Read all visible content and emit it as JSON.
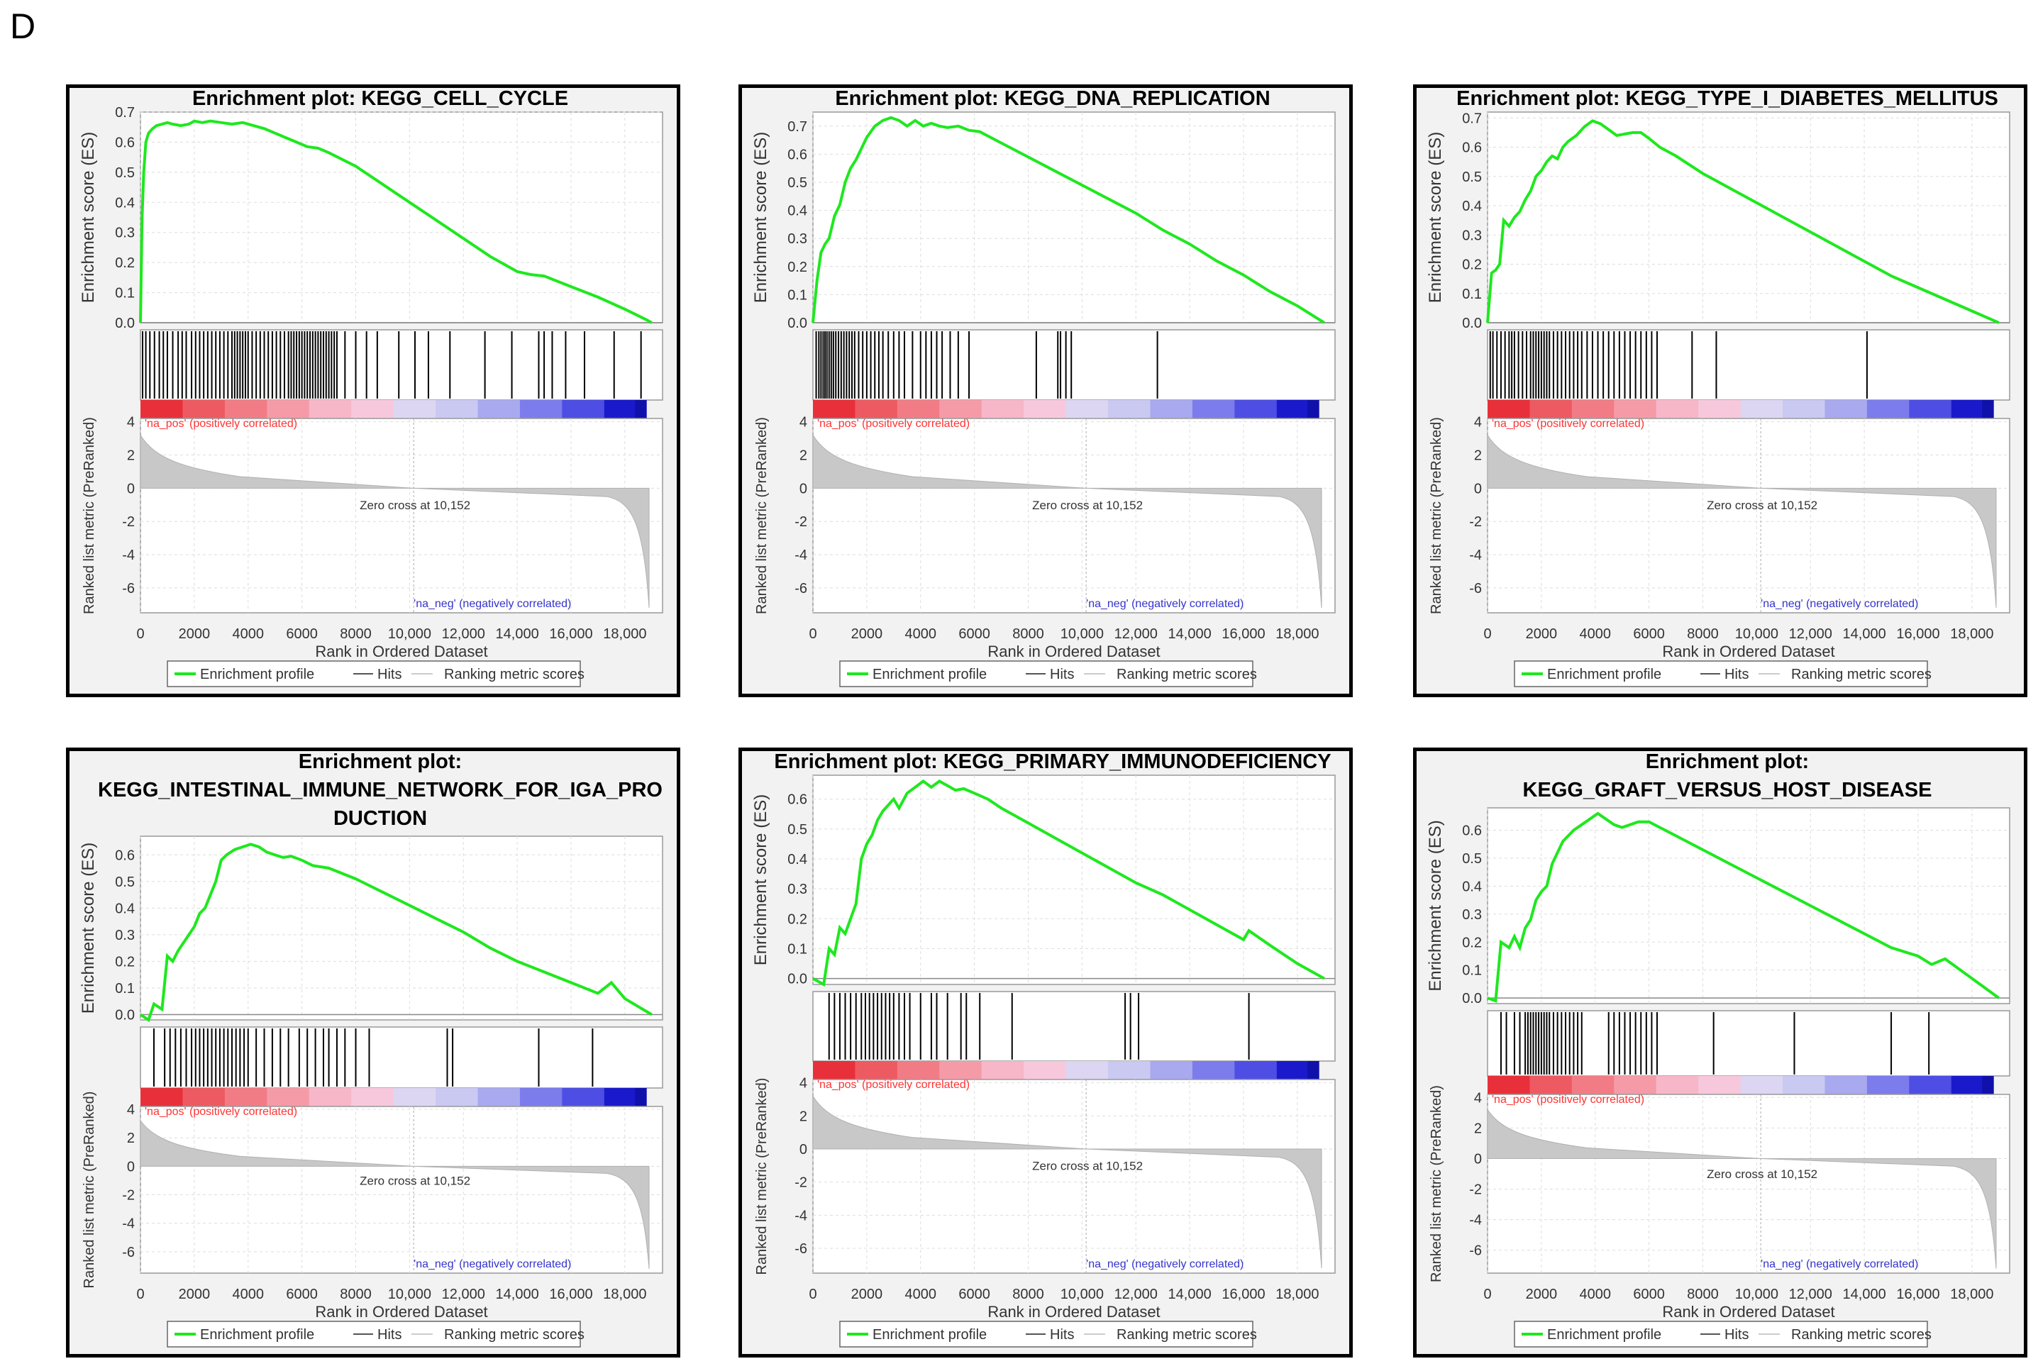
{
  "figure": {
    "panel_label": "D"
  },
  "colors": {
    "curve": "#1ee81e",
    "hits": "#000000",
    "metric_fill": "#c8c8c8",
    "pos_label": "#ff3333",
    "neg_label": "#3333cc",
    "grid": "#dddddd"
  },
  "chart_data": [
    {
      "type": "line",
      "id": "cell_cycle",
      "title": [
        "Enrichment plot: KEGG_CELL_CYCLE"
      ],
      "ylabel": "Enrichment score (ES)",
      "ylabel2": "Ranked list metric (PreRanked)",
      "xlabel": "Rank in Ordered Dataset",
      "ylim": [
        0,
        0.7
      ],
      "yticks": [
        "0.0",
        "0.1",
        "0.2",
        "0.3",
        "0.4",
        "0.5",
        "0.6",
        "0.7"
      ],
      "xlim": [
        0,
        19400
      ],
      "xticks": [
        "0",
        "2000",
        "4000",
        "6000",
        "8000",
        "10,000",
        "12,000",
        "14,000",
        "16,000",
        "18,000"
      ],
      "metric_yticks": [
        "4",
        "2",
        "0",
        "-2",
        "-4",
        "-6"
      ],
      "es_curve": {
        "x": [
          0,
          60,
          120,
          200,
          300,
          450,
          600,
          800,
          1000,
          1200,
          1500,
          1800,
          2000,
          2300,
          2600,
          3000,
          3400,
          3800,
          4200,
          4600,
          5000,
          5400,
          5800,
          6200,
          6600,
          7000,
          8000,
          9000,
          10000,
          11000,
          12000,
          13000,
          14000,
          14500,
          15000,
          16000,
          17000,
          18000,
          18800,
          19000
        ],
        "y": [
          0,
          0.35,
          0.5,
          0.6,
          0.63,
          0.645,
          0.655,
          0.66,
          0.665,
          0.66,
          0.655,
          0.66,
          0.67,
          0.665,
          0.67,
          0.665,
          0.66,
          0.665,
          0.655,
          0.645,
          0.63,
          0.615,
          0.6,
          0.585,
          0.58,
          0.565,
          0.52,
          0.46,
          0.4,
          0.34,
          0.28,
          0.22,
          0.17,
          0.16,
          0.155,
          0.12,
          0.085,
          0.045,
          0.01,
          0
        ]
      },
      "hits": [
        80,
        200,
        350,
        520,
        700,
        850,
        1000,
        1200,
        1400,
        1550,
        1700,
        1900,
        2050,
        2200,
        2350,
        2500,
        2650,
        2800,
        2950,
        3100,
        3250,
        3400,
        3500,
        3600,
        3700,
        3800,
        3900,
        4000,
        4150,
        4300,
        4450,
        4600,
        4750,
        4900,
        5050,
        5200,
        5350,
        5500,
        5600,
        5700,
        5800,
        5900,
        6000,
        6100,
        6200,
        6300,
        6400,
        6500,
        6600,
        6700,
        6800,
        6900,
        7000,
        7100,
        7200,
        7300,
        7600,
        8000,
        8400,
        8800,
        9600,
        10200,
        10700,
        11500,
        12800,
        13800,
        14800,
        15000,
        15300,
        15800,
        16500,
        17600,
        18600
      ],
      "zero_cross_label": "Zero cross at 10,152",
      "zero_cross_rank": 10152,
      "pos_label": "'na_pos' (positively correlated)",
      "neg_label": "'na_neg' (negatively correlated)",
      "legend": [
        "Enrichment profile",
        "Hits",
        "Ranking metric scores"
      ]
    },
    {
      "type": "line",
      "id": "dna_replication",
      "title": [
        "Enrichment plot: KEGG_DNA_REPLICATION"
      ],
      "ylabel": "Enrichment score (ES)",
      "ylabel2": "Ranked list metric (PreRanked)",
      "xlabel": "Rank in Ordered Dataset",
      "ylim": [
        0,
        0.75
      ],
      "yticks": [
        "0.0",
        "0.1",
        "0.2",
        "0.3",
        "0.4",
        "0.5",
        "0.6",
        "0.7"
      ],
      "xlim": [
        0,
        19400
      ],
      "xticks": [
        "0",
        "2000",
        "4000",
        "6000",
        "8000",
        "10,000",
        "12,000",
        "14,000",
        "16,000",
        "18,000"
      ],
      "metric_yticks": [
        "4",
        "2",
        "0",
        "-2",
        "-4",
        "-6"
      ],
      "es_curve": {
        "x": [
          0,
          150,
          300,
          450,
          600,
          800,
          1000,
          1200,
          1400,
          1600,
          1800,
          2000,
          2300,
          2600,
          2900,
          3200,
          3500,
          3800,
          4100,
          4400,
          4700,
          5000,
          5400,
          5800,
          6200,
          7000,
          8000,
          9000,
          10000,
          11000,
          12000,
          13000,
          14000,
          15000,
          16000,
          17000,
          18000,
          19000
        ],
        "y": [
          0,
          0.15,
          0.25,
          0.28,
          0.3,
          0.38,
          0.42,
          0.5,
          0.55,
          0.58,
          0.62,
          0.66,
          0.7,
          0.72,
          0.73,
          0.72,
          0.7,
          0.72,
          0.7,
          0.71,
          0.7,
          0.695,
          0.7,
          0.685,
          0.68,
          0.64,
          0.59,
          0.54,
          0.49,
          0.44,
          0.39,
          0.33,
          0.28,
          0.22,
          0.17,
          0.11,
          0.06,
          0.0
        ]
      },
      "hits": [
        120,
        220,
        300,
        380,
        450,
        520,
        600,
        680,
        760,
        850,
        950,
        1050,
        1150,
        1250,
        1350,
        1450,
        1550,
        1700,
        1850,
        2000,
        2150,
        2300,
        2450,
        2600,
        2800,
        3000,
        3200,
        3400,
        3700,
        4000,
        4200,
        4400,
        4600,
        4800,
        5100,
        5400,
        5800,
        8300,
        9100,
        9200,
        9400,
        9600,
        12800
      ],
      "zero_cross_label": "Zero cross at 10,152",
      "zero_cross_rank": 10152,
      "pos_label": "'na_pos' (positively correlated)",
      "neg_label": "'na_neg' (negatively correlated)",
      "legend": [
        "Enrichment profile",
        "Hits",
        "Ranking metric scores"
      ]
    },
    {
      "type": "line",
      "id": "t1d",
      "title": [
        "Enrichment plot: KEGG_TYPE_I_DIABETES_MELLITUS"
      ],
      "ylabel": "Enrichment score (ES)",
      "ylabel2": "Ranked list metric (PreRanked)",
      "xlabel": "Rank in Ordered Dataset",
      "ylim": [
        0,
        0.72
      ],
      "yticks": [
        "0.0",
        "0.1",
        "0.2",
        "0.3",
        "0.4",
        "0.5",
        "0.6",
        "0.7"
      ],
      "xlim": [
        0,
        19400
      ],
      "xticks": [
        "0",
        "2000",
        "4000",
        "6000",
        "8000",
        "10,000",
        "12,000",
        "14,000",
        "16,000",
        "18,000"
      ],
      "metric_yticks": [
        "4",
        "2",
        "0",
        "-2",
        "-4",
        "-6"
      ],
      "es_curve": {
        "x": [
          0,
          150,
          300,
          450,
          600,
          800,
          1000,
          1200,
          1400,
          1600,
          1800,
          2000,
          2200,
          2400,
          2600,
          2800,
          3000,
          3300,
          3600,
          3900,
          4200,
          4500,
          4800,
          5100,
          5400,
          5700,
          6000,
          6400,
          7000,
          8000,
          9000,
          10000,
          11000,
          12000,
          13000,
          14000,
          15000,
          16000,
          17000,
          18000,
          19000
        ],
        "y": [
          0,
          0.17,
          0.18,
          0.2,
          0.35,
          0.33,
          0.36,
          0.38,
          0.42,
          0.45,
          0.5,
          0.52,
          0.55,
          0.57,
          0.56,
          0.6,
          0.62,
          0.64,
          0.67,
          0.69,
          0.68,
          0.66,
          0.64,
          0.645,
          0.65,
          0.65,
          0.63,
          0.6,
          0.57,
          0.51,
          0.46,
          0.41,
          0.36,
          0.31,
          0.26,
          0.21,
          0.16,
          0.12,
          0.08,
          0.04,
          0.0
        ]
      },
      "hits": [
        100,
        200,
        350,
        500,
        650,
        800,
        900,
        1000,
        1150,
        1300,
        1450,
        1600,
        1700,
        1800,
        1900,
        2000,
        2100,
        2200,
        2300,
        2450,
        2600,
        2750,
        2900,
        3050,
        3200,
        3350,
        3500,
        3700,
        3900,
        4100,
        4300,
        4500,
        4700,
        4900,
        5100,
        5300,
        5500,
        5700,
        5900,
        6100,
        6300,
        7600,
        8500,
        14100
      ],
      "zero_cross_label": "Zero cross at 10,152",
      "zero_cross_rank": 10152,
      "pos_label": "'na_pos' (positively correlated)",
      "neg_label": "'na_neg' (negatively correlated)",
      "legend": [
        "Enrichment profile",
        "Hits",
        "Ranking metric scores"
      ]
    },
    {
      "type": "line",
      "id": "iga",
      "title": [
        "Enrichment plot:",
        "KEGG_INTESTINAL_IMMUNE_NETWORK_FOR_IGA_PRO",
        "DUCTION"
      ],
      "ylabel": "Enrichment score (ES)",
      "ylabel2": "Ranked list metric (PreRanked)",
      "xlabel": "Rank in Ordered Dataset",
      "ylim": [
        -0.02,
        0.67
      ],
      "yticks": [
        "0.0",
        "0.1",
        "0.2",
        "0.3",
        "0.4",
        "0.5",
        "0.6"
      ],
      "xlim": [
        0,
        19400
      ],
      "xticks": [
        "0",
        "2000",
        "4000",
        "6000",
        "8000",
        "10,000",
        "12,000",
        "14,000",
        "16,000",
        "18,000"
      ],
      "metric_yticks": [
        "4",
        "2",
        "0",
        "-2",
        "-4",
        "-6"
      ],
      "es_curve": {
        "x": [
          0,
          300,
          500,
          800,
          1000,
          1200,
          1400,
          1600,
          1800,
          2000,
          2200,
          2400,
          2600,
          2800,
          3000,
          3200,
          3500,
          3800,
          4100,
          4400,
          4700,
          5000,
          5300,
          5600,
          6000,
          6400,
          7000,
          8000,
          9000,
          10000,
          11000,
          12000,
          13000,
          14000,
          15000,
          16000,
          17000,
          17500,
          18000,
          19000
        ],
        "y": [
          0,
          -0.02,
          0.04,
          0.02,
          0.22,
          0.2,
          0.24,
          0.27,
          0.3,
          0.33,
          0.38,
          0.4,
          0.45,
          0.5,
          0.58,
          0.6,
          0.62,
          0.63,
          0.64,
          0.63,
          0.61,
          0.6,
          0.59,
          0.595,
          0.58,
          0.56,
          0.55,
          0.51,
          0.46,
          0.41,
          0.36,
          0.31,
          0.25,
          0.2,
          0.16,
          0.12,
          0.08,
          0.12,
          0.06,
          0.0
        ]
      },
      "hits": [
        500,
        900,
        1100,
        1300,
        1500,
        1700,
        1900,
        2050,
        2200,
        2350,
        2500,
        2650,
        2800,
        2950,
        3100,
        3250,
        3400,
        3550,
        3700,
        3850,
        4000,
        4300,
        4600,
        4900,
        5200,
        5500,
        5900,
        6200,
        6500,
        6800,
        7000,
        7300,
        7600,
        8000,
        8500,
        11400,
        11600,
        14800,
        16800
      ],
      "zero_cross_label": "Zero cross at 10,152",
      "zero_cross_rank": 10152,
      "pos_label": "'na_pos' (positively correlated)",
      "neg_label": "'na_neg' (negatively correlated)",
      "legend": [
        "Enrichment profile",
        "Hits",
        "Ranking metric scores"
      ]
    },
    {
      "type": "line",
      "id": "pid",
      "title": [
        "Enrichment plot: KEGG_PRIMARY_IMMUNODEFICIENCY"
      ],
      "ylabel": "Enrichment score (ES)",
      "ylabel2": "Ranked list metric (PreRanked)",
      "xlabel": "Rank in Ordered Dataset",
      "ylim": [
        -0.02,
        0.68
      ],
      "yticks": [
        "0.0",
        "0.1",
        "0.2",
        "0.3",
        "0.4",
        "0.5",
        "0.6"
      ],
      "xlim": [
        0,
        19400
      ],
      "xticks": [
        "0",
        "2000",
        "4000",
        "6000",
        "8000",
        "10,000",
        "12,000",
        "14,000",
        "16,000",
        "18,000"
      ],
      "metric_yticks": [
        "4",
        "2",
        "0",
        "-2",
        "-4",
        "-6"
      ],
      "es_curve": {
        "x": [
          0,
          400,
          600,
          800,
          1000,
          1200,
          1400,
          1600,
          1800,
          2000,
          2200,
          2400,
          2600,
          2800,
          3000,
          3200,
          3500,
          3800,
          4100,
          4400,
          4700,
          5000,
          5300,
          5600,
          6000,
          6500,
          7000,
          8000,
          9000,
          10000,
          11000,
          12000,
          13000,
          14000,
          15000,
          16000,
          16200,
          17000,
          18000,
          19000
        ],
        "y": [
          0,
          -0.02,
          0.1,
          0.08,
          0.17,
          0.15,
          0.2,
          0.25,
          0.4,
          0.45,
          0.48,
          0.53,
          0.56,
          0.58,
          0.6,
          0.57,
          0.62,
          0.64,
          0.66,
          0.64,
          0.66,
          0.645,
          0.63,
          0.635,
          0.62,
          0.6,
          0.57,
          0.52,
          0.47,
          0.42,
          0.37,
          0.32,
          0.28,
          0.23,
          0.18,
          0.13,
          0.16,
          0.11,
          0.05,
          0.0
        ]
      },
      "hits": [
        600,
        800,
        1000,
        1200,
        1400,
        1600,
        1800,
        1950,
        2100,
        2250,
        2400,
        2550,
        2700,
        2850,
        3000,
        3200,
        3400,
        3600,
        4000,
        4400,
        4600,
        5000,
        5500,
        5700,
        6200,
        7400,
        11600,
        11800,
        12100,
        16200
      ],
      "zero_cross_label": "Zero cross at 10,152",
      "zero_cross_rank": 10152,
      "pos_label": "'na_pos' (positively correlated)",
      "neg_label": "'na_neg' (negatively correlated)",
      "legend": [
        "Enrichment profile",
        "Hits",
        "Ranking metric scores"
      ]
    },
    {
      "type": "line",
      "id": "gvhd",
      "title": [
        "Enrichment plot:",
        "KEGG_GRAFT_VERSUS_HOST_DISEASE"
      ],
      "ylabel": "Enrichment score (ES)",
      "ylabel2": "Ranked list metric (PreRanked)",
      "xlabel": "Rank in Ordered Dataset",
      "ylim": [
        -0.02,
        0.68
      ],
      "yticks": [
        "0.0",
        "0.1",
        "0.2",
        "0.3",
        "0.4",
        "0.5",
        "0.6"
      ],
      "xlim": [
        0,
        19400
      ],
      "xticks": [
        "0",
        "2000",
        "4000",
        "6000",
        "8000",
        "10,000",
        "12,000",
        "14,000",
        "16,000",
        "18,000"
      ],
      "metric_yticks": [
        "4",
        "2",
        "0",
        "-2",
        "-4",
        "-6"
      ],
      "es_curve": {
        "x": [
          0,
          300,
          500,
          800,
          1000,
          1200,
          1400,
          1600,
          1800,
          2000,
          2200,
          2400,
          2600,
          2800,
          3000,
          3200,
          3500,
          3800,
          4100,
          4400,
          4700,
          5000,
          5300,
          5600,
          6000,
          6400,
          7000,
          8000,
          9000,
          10000,
          11000,
          12000,
          13000,
          14000,
          15000,
          16000,
          16500,
          17000,
          18000,
          19000
        ],
        "y": [
          0,
          -0.01,
          0.2,
          0.18,
          0.22,
          0.18,
          0.25,
          0.28,
          0.35,
          0.38,
          0.4,
          0.48,
          0.52,
          0.56,
          0.58,
          0.6,
          0.62,
          0.64,
          0.66,
          0.64,
          0.62,
          0.61,
          0.62,
          0.63,
          0.63,
          0.61,
          0.58,
          0.53,
          0.48,
          0.43,
          0.38,
          0.33,
          0.28,
          0.23,
          0.18,
          0.15,
          0.12,
          0.14,
          0.07,
          0.0
        ]
      },
      "hits": [
        500,
        700,
        1000,
        1200,
        1400,
        1500,
        1600,
        1700,
        1800,
        1900,
        2000,
        2100,
        2200,
        2300,
        2450,
        2600,
        2750,
        2900,
        3050,
        3200,
        3350,
        3500,
        4500,
        4700,
        4900,
        5100,
        5300,
        5500,
        5700,
        5900,
        6100,
        6300,
        8400,
        11400,
        15000,
        16400
      ],
      "zero_cross_label": "Zero cross at 10,152",
      "zero_cross_rank": 10152,
      "pos_label": "'na_pos' (positively correlated)",
      "neg_label": "'na_neg' (negatively correlated)",
      "legend": [
        "Enrichment profile",
        "Hits",
        "Ranking metric scores"
      ]
    }
  ]
}
